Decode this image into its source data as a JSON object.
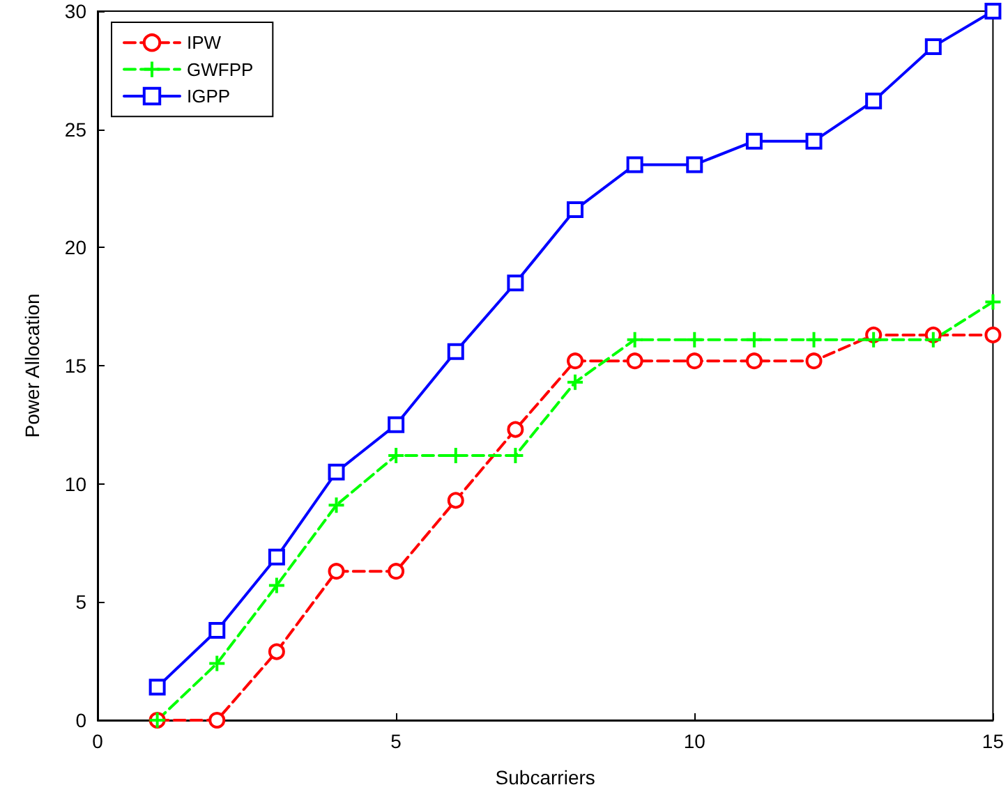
{
  "chart_data": {
    "type": "line",
    "xlabel": "Subcarriers",
    "ylabel": "Power Allocation",
    "x": [
      1,
      2,
      3,
      4,
      5,
      6,
      7,
      8,
      9,
      10,
      11,
      12,
      13,
      14,
      15
    ],
    "series": [
      {
        "name": "IPW",
        "color": "#ff0000",
        "marker": "circle",
        "line_style": "dashed",
        "values": [
          0,
          0,
          2.9,
          6.3,
          6.3,
          9.3,
          12.3,
          15.2,
          15.2,
          15.2,
          15.2,
          15.2,
          16.3,
          16.3,
          16.3
        ]
      },
      {
        "name": "GWFPP",
        "color": "#00ff00",
        "marker": "cross",
        "line_style": "dashed",
        "values": [
          0,
          2.4,
          5.7,
          9.1,
          11.2,
          11.2,
          11.2,
          14.3,
          16.1,
          16.1,
          16.1,
          16.1,
          16.1,
          16.1,
          17.7
        ]
      },
      {
        "name": "IGPP",
        "color": "#0000ff",
        "marker": "square",
        "line_style": "solid",
        "values": [
          1.4,
          3.8,
          6.9,
          10.5,
          12.5,
          15.6,
          18.5,
          21.6,
          23.5,
          23.5,
          24.5,
          24.5,
          26.2,
          28.5,
          30
        ]
      }
    ],
    "xlim": [
      0,
      15
    ],
    "xticks": [
      0,
      5,
      10,
      15
    ],
    "ylim": [
      0,
      30
    ],
    "yticks": [
      0,
      5,
      10,
      15,
      20,
      25,
      30
    ],
    "grid": false,
    "legend": "top left"
  }
}
